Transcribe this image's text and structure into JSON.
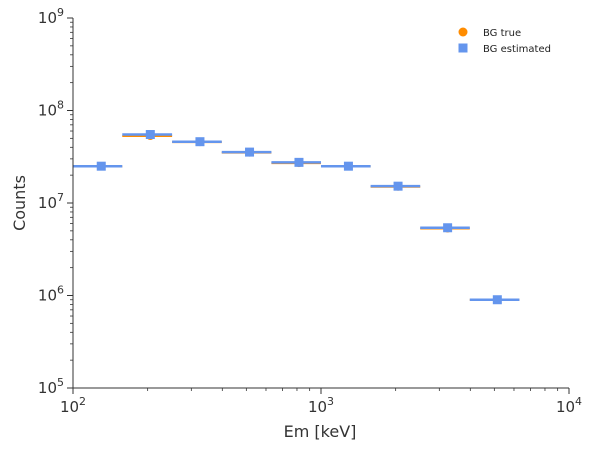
{
  "chart_data": {
    "type": "scatter",
    "title": "",
    "xlabel": "Em [keV]",
    "ylabel": "Counts",
    "xscale": "log",
    "yscale": "log",
    "xlim": [
      100,
      10000
    ],
    "ylim": [
      100000,
      1000000000
    ],
    "x_ticks": [
      {
        "base": "10",
        "exp": "2",
        "value": 100
      },
      {
        "base": "10",
        "exp": "3",
        "value": 1000
      },
      {
        "base": "10",
        "exp": "4",
        "value": 10000
      }
    ],
    "y_ticks": [
      {
        "base": "10",
        "exp": "5",
        "value": 100000
      },
      {
        "base": "10",
        "exp": "6",
        "value": 1000000
      },
      {
        "base": "10",
        "exp": "7",
        "value": 10000000
      },
      {
        "base": "10",
        "exp": "8",
        "value": 100000000
      },
      {
        "base": "10",
        "exp": "9",
        "value": 1000000000
      }
    ],
    "bins": [
      {
        "low": 100,
        "high": 158
      },
      {
        "low": 158,
        "high": 251
      },
      {
        "low": 251,
        "high": 398
      },
      {
        "low": 398,
        "high": 631
      },
      {
        "low": 631,
        "high": 1000
      },
      {
        "low": 1000,
        "high": 1585
      },
      {
        "low": 1585,
        "high": 2512
      },
      {
        "low": 2512,
        "high": 3981
      },
      {
        "low": 3981,
        "high": 6310
      }
    ],
    "series": [
      {
        "name": "BG true",
        "marker": "circle",
        "color": "#ff8c00",
        "x": [
          130,
          205,
          325,
          515,
          815,
          1290,
          2045,
          3240,
          5140
        ],
        "y": [
          24800000,
          53000000,
          45500000,
          35000000,
          27000000,
          24800000,
          15000000,
          5300000,
          900000
        ]
      },
      {
        "name": "BG estimated",
        "marker": "square",
        "color": "#6495ed",
        "x": [
          130,
          205,
          325,
          515,
          815,
          1290,
          2045,
          3240,
          5140
        ],
        "y": [
          25000000,
          55000000,
          46000000,
          35500000,
          27500000,
          25000000,
          15200000,
          5400000,
          900000
        ]
      }
    ],
    "legend_position": "top-right",
    "grid": false
  }
}
